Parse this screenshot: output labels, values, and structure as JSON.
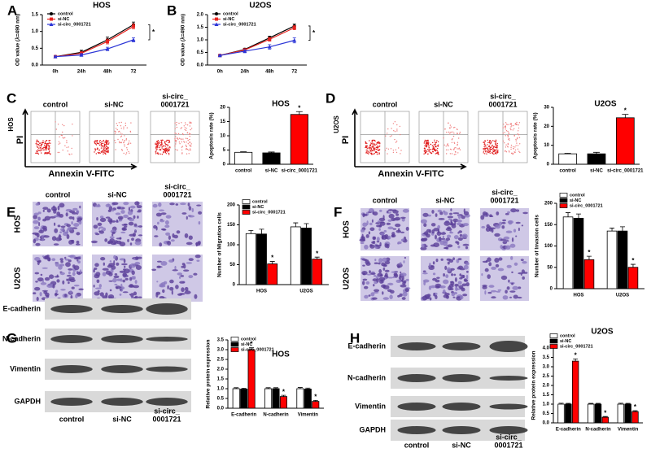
{
  "chart_data": [
    {
      "type": "line",
      "panel": "A",
      "title": "HOS",
      "y_label": "OD value (λ=490 nm)",
      "categories": [
        "0h",
        "24h",
        "48h",
        "72"
      ],
      "series": [
        {
          "name": "control",
          "color": "#000000",
          "values": [
            0.25,
            0.38,
            0.75,
            1.2
          ],
          "errors": [
            0.02,
            0.06,
            0.08,
            0.08
          ]
        },
        {
          "name": "si-NC",
          "color": "#e8231f",
          "values": [
            0.25,
            0.35,
            0.7,
            1.15
          ],
          "errors": [
            0.02,
            0.05,
            0.07,
            0.07
          ]
        },
        {
          "name": "si-circ_0001721",
          "color": "#2b35d6",
          "values": [
            0.25,
            0.3,
            0.48,
            0.75
          ],
          "errors": [
            0.02,
            0.04,
            0.05,
            0.06
          ]
        }
      ],
      "ylim": [
        0,
        1.5
      ],
      "yticks": [
        {
          "value": 0,
          "label": "0.0"
        },
        0.5,
        {
          "value": 1,
          "label": "1.0"
        },
        1.5
      ],
      "legend": "upper left",
      "annotation": "*"
    },
    {
      "type": "line",
      "panel": "B",
      "title": "U2OS",
      "y_label": "OD value (λ=490 nm)",
      "categories": [
        "0h",
        "24h",
        "48h",
        "72"
      ],
      "series": [
        {
          "name": "control",
          "color": "#000000",
          "values": [
            0.38,
            0.62,
            1.08,
            1.55
          ],
          "errors": [
            0.03,
            0.05,
            0.07,
            0.08
          ]
        },
        {
          "name": "si-NC",
          "color": "#e8231f",
          "values": [
            0.38,
            0.6,
            1.02,
            1.48
          ],
          "errors": [
            0.03,
            0.05,
            0.07,
            0.08
          ]
        },
        {
          "name": "si-circ_0001721",
          "color": "#2b35d6",
          "values": [
            0.38,
            0.55,
            0.72,
            0.98
          ],
          "errors": [
            0.03,
            0.06,
            0.09,
            0.1
          ]
        }
      ],
      "ylim": [
        0,
        2
      ],
      "yticks": [
        {
          "value": 0,
          "label": "0.0"
        },
        0.5,
        {
          "value": 1,
          "label": "1.0"
        },
        1.5,
        {
          "value": 2,
          "label": "2.0"
        }
      ],
      "legend": "upper left",
      "annotation": "*"
    },
    {
      "type": "bar",
      "title": "HOS",
      "y_label": "Apoptosis rate (%)",
      "categories": [
        "control",
        "si-NC",
        "si-circ_0001721"
      ],
      "values": [
        4.2,
        4.0,
        17.5
      ],
      "errors": [
        0.2,
        0.3,
        1.0
      ],
      "colors": [
        "#ffffff",
        "#000000",
        "#ff0000"
      ],
      "significance": [
        null,
        null,
        "*"
      ],
      "ylim": [
        0,
        20
      ],
      "yticks": [
        0,
        5,
        10,
        15,
        20
      ]
    },
    {
      "type": "bar",
      "title": "U2OS",
      "y_label": "Apoptosis rate (%)",
      "categories": [
        "control",
        "si-NC",
        "si-circ_0001721"
      ],
      "values": [
        5.5,
        5.5,
        24.5
      ],
      "errors": [
        0.3,
        0.8,
        1.8
      ],
      "colors": [
        "#ffffff",
        "#000000",
        "#ff0000"
      ],
      "significance": [
        null,
        null,
        "*"
      ],
      "ylim": [
        0,
        30
      ],
      "yticks": [
        0,
        10,
        20,
        30
      ]
    },
    {
      "type": "bar",
      "y_label": "Number of Migration cells",
      "categories": [
        "HOS",
        "U2OS"
      ],
      "series": [
        {
          "name": "control",
          "color": "#ffffff",
          "values": [
            128,
            145
          ],
          "errors": [
            8,
            10
          ]
        },
        {
          "name": "si-NC",
          "color": "#000000",
          "values": [
            127,
            142
          ],
          "errors": [
            12,
            11
          ]
        },
        {
          "name": "si-circ_0001721",
          "color": "#ff0000",
          "values": [
            52,
            64
          ],
          "errors": [
            6,
            5
          ],
          "significance": [
            "*",
            "*"
          ]
        }
      ],
      "ylim": [
        0,
        200
      ],
      "yticks": [
        0,
        50,
        100,
        150,
        200
      ],
      "legend": "upper left"
    },
    {
      "type": "bar",
      "y_label": "Number of Invasion cells",
      "categories": [
        "HOS",
        "U2OS"
      ],
      "series": [
        {
          "name": "control",
          "color": "#ffffff",
          "values": [
            168,
            135
          ],
          "errors": [
            10,
            7
          ]
        },
        {
          "name": "si-NC",
          "color": "#000000",
          "values": [
            165,
            135
          ],
          "errors": [
            10,
            10
          ]
        },
        {
          "name": "si-circ_0001721",
          "color": "#ff0000",
          "values": [
            68,
            50
          ],
          "errors": [
            8,
            7
          ],
          "significance": [
            "*",
            "*"
          ]
        }
      ],
      "ylim": [
        0,
        200
      ],
      "yticks": [
        0,
        50,
        100,
        150,
        200
      ],
      "legend": "upper left"
    },
    {
      "type": "bar",
      "title": "HOS",
      "y_label": "Relative protein expression",
      "categories": [
        "E-cadherin",
        "N-cadherin",
        "Vimentin"
      ],
      "series": [
        {
          "name": "control",
          "color": "#ffffff",
          "values": [
            1.0,
            1.0,
            1.0
          ],
          "errors": [
            0.05,
            0.05,
            0.06
          ]
        },
        {
          "name": "si-NC",
          "color": "#000000",
          "values": [
            0.98,
            1.0,
            0.98
          ],
          "errors": [
            0.04,
            0.05,
            0.05
          ]
        },
        {
          "name": "si-circ_0001721",
          "color": "#ff0000",
          "values": [
            3.0,
            0.6,
            0.35
          ],
          "errors": [
            0.1,
            0.06,
            0.05
          ],
          "significance": [
            "*",
            "*",
            "*"
          ]
        }
      ],
      "ylim": [
        0,
        3.5
      ],
      "yticks": [
        {
          "value": 0,
          "label": "0.0"
        },
        0.5,
        {
          "value": 1,
          "label": "1.0"
        },
        1.5,
        {
          "value": 2,
          "label": "2.0"
        },
        2.5,
        {
          "value": 3,
          "label": "3.0"
        },
        3.5
      ],
      "legend": "upper left"
    },
    {
      "type": "bar",
      "title": "U2OS",
      "y_label": "Relative protein expression",
      "categories": [
        "E-cadherin",
        "N-cadherin",
        "Vimentin"
      ],
      "series": [
        {
          "name": "control",
          "color": "#ffffff",
          "values": [
            1.0,
            1.0,
            1.0
          ],
          "errors": [
            0.05,
            0.04,
            0.05
          ]
        },
        {
          "name": "si-NC",
          "color": "#000000",
          "values": [
            1.0,
            1.0,
            1.0
          ],
          "errors": [
            0.04,
            0.04,
            0.04
          ]
        },
        {
          "name": "si-circ_0001721",
          "color": "#ff0000",
          "values": [
            3.3,
            0.3,
            0.6
          ],
          "errors": [
            0.12,
            0.04,
            0.05
          ],
          "significance": [
            "*",
            "*",
            "*"
          ]
        }
      ],
      "ylim": [
        0,
        4
      ],
      "yticks": [
        {
          "value": 0,
          "label": "0.0"
        },
        0.5,
        {
          "value": 1,
          "label": "1.0"
        },
        1.5,
        {
          "value": 2,
          "label": "2.0"
        },
        2.5,
        {
          "value": 3,
          "label": "3.0"
        },
        3.5,
        {
          "value": 4,
          "label": "4.0"
        }
      ],
      "legend": "upper left"
    }
  ],
  "images": [
    {
      "panel": "C",
      "kind": "flow",
      "columns": [
        "control",
        "si-NC",
        [
          "si-circ_",
          "0001721"
        ]
      ],
      "rows": [
        "HOS"
      ],
      "y_label": "PI",
      "x_label": "Annexin V-FITC"
    },
    {
      "panel": "D",
      "kind": "flow",
      "columns": [
        "control",
        "si-NC",
        [
          "si-circ_",
          "0001721"
        ]
      ],
      "rows": [
        "U2OS"
      ],
      "y_label": "PI",
      "x_label": "Annexin V-FITC"
    },
    {
      "panel": "E",
      "kind": "transwell",
      "columns": [
        "control",
        "si-NC",
        [
          "si-circ_",
          "0001721"
        ]
      ],
      "rows": [
        "HOS",
        "U2OS"
      ]
    },
    {
      "panel": "F",
      "kind": "transwell",
      "columns": [
        "control",
        "si-NC",
        [
          "si-circ_",
          "0001721"
        ]
      ],
      "rows": [
        "HOS",
        "U2OS"
      ]
    },
    {
      "panel": "G",
      "kind": "blot",
      "columns": [
        "control",
        "si-NC",
        [
          "si-circ_",
          "0001721"
        ]
      ],
      "rows": [
        "E-cadherin",
        "N-cadherin",
        "Vimentin",
        "GAPDH"
      ]
    },
    {
      "panel": "H",
      "kind": "blot",
      "columns": [
        "control",
        "si-NC",
        [
          "si-circ_",
          "0001721"
        ]
      ],
      "rows": [
        "E-cadherin",
        "N-cadherin",
        "Vimentin",
        "GAPDH"
      ]
    }
  ]
}
